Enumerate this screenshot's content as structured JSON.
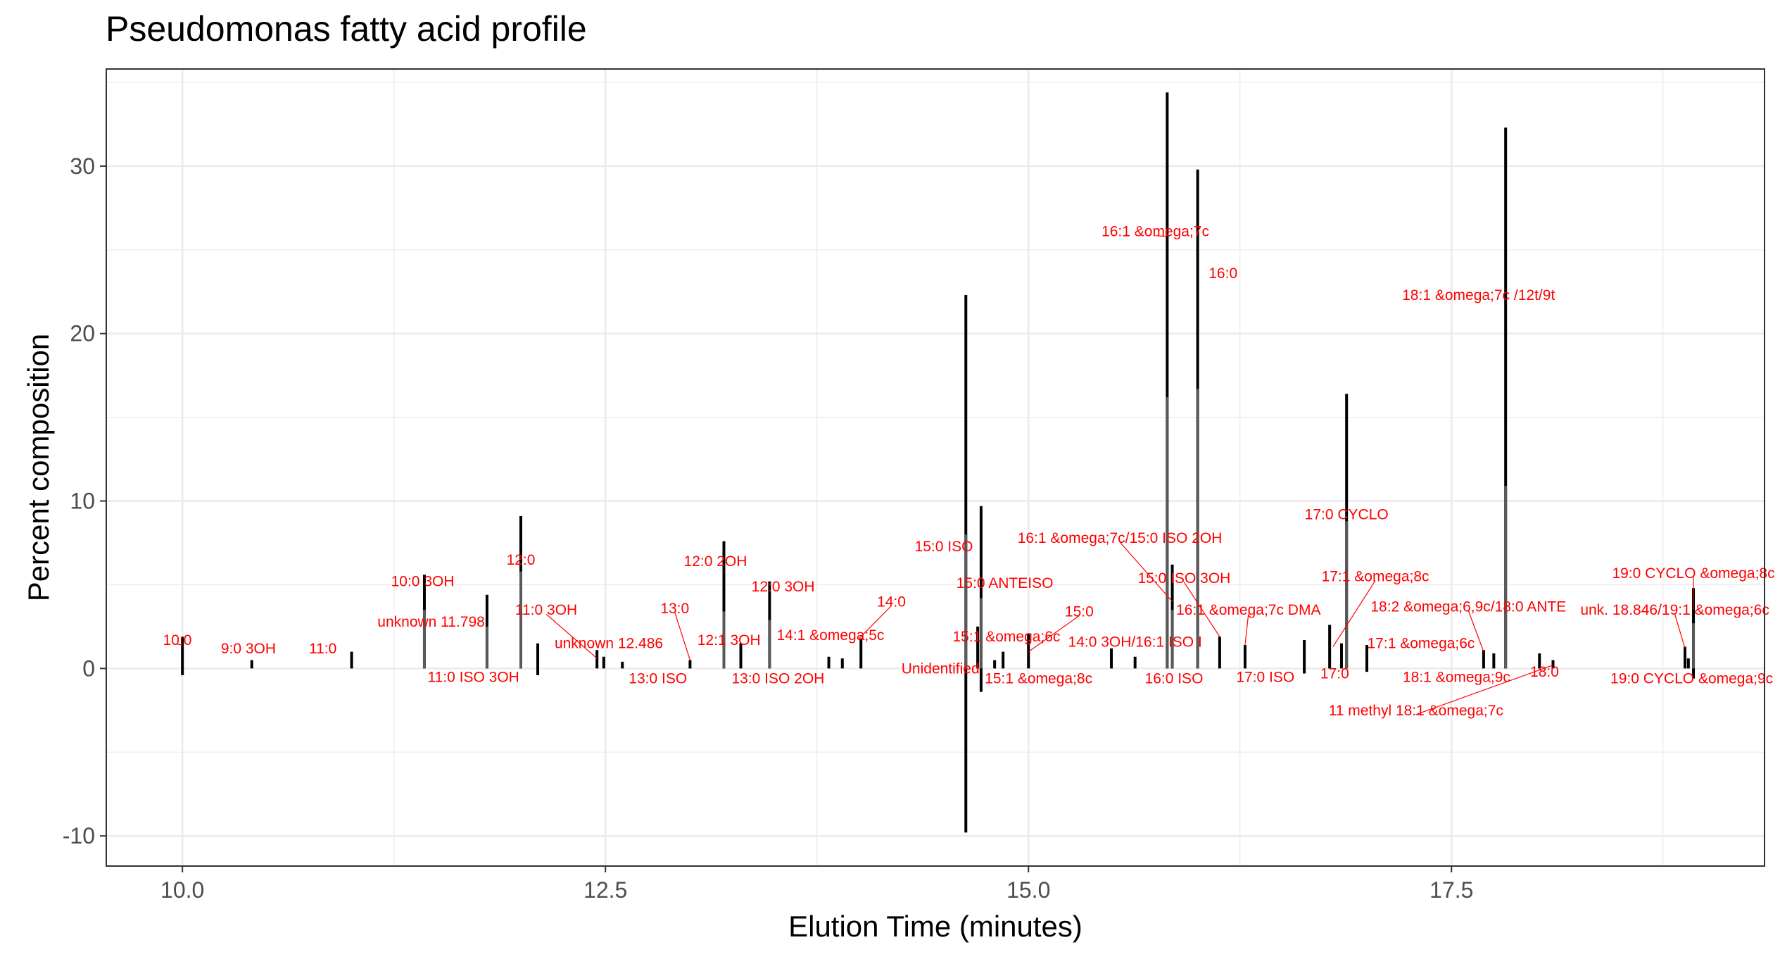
{
  "chart_data": {
    "type": "bar",
    "title": "Pseudomonas fatty acid profile",
    "xlabel": "Elution Time (minutes)",
    "ylabel": "Percent composition",
    "xlim": [
      9.55,
      19.35
    ],
    "ylim": [
      -11.8,
      35.8
    ],
    "x_ticks": [
      10.0,
      12.5,
      15.0,
      17.5
    ],
    "x_tick_labels": [
      "10.0",
      "12.5",
      "15.0",
      "17.5"
    ],
    "x_minor_ticks": [
      11.25,
      13.75,
      16.25,
      18.75
    ],
    "y_ticks": [
      -10,
      0,
      10,
      20,
      30
    ],
    "y_tick_labels": [
      "-10",
      "0",
      "10",
      "20",
      "30"
    ],
    "y_minor_ticks": [
      -5,
      5,
      15,
      25,
      35
    ],
    "grid": true,
    "colors": {
      "peak": "#000000",
      "peak_inner": "#595959",
      "label": "#ff0000",
      "grid": "#ebebeb",
      "border": "#333333"
    },
    "peaks": [
      {
        "x": 10.0,
        "y_max": 1.9,
        "y_min": -0.4,
        "inner_max": 0
      },
      {
        "x": 10.41,
        "y_max": 0.5,
        "y_min": 0,
        "inner_max": 0
      },
      {
        "x": 11.0,
        "y_max": 1.0,
        "y_min": 0,
        "inner_max": 0
      },
      {
        "x": 11.43,
        "y_max": 5.6,
        "y_min": 0,
        "inner_max": 3.5
      },
      {
        "x": 11.8,
        "y_max": 4.4,
        "y_min": 0,
        "inner_max": 2.5
      },
      {
        "x": 12.0,
        "y_max": 9.1,
        "y_min": 0,
        "inner_max": 5.8
      },
      {
        "x": 12.1,
        "y_max": 1.5,
        "y_min": -0.4,
        "inner_max": 0
      },
      {
        "x": 12.45,
        "y_max": 1.1,
        "y_min": 0,
        "inner_max": 0
      },
      {
        "x": 12.49,
        "y_max": 0.7,
        "y_min": 0,
        "inner_max": 0
      },
      {
        "x": 12.6,
        "y_max": 0.4,
        "y_min": 0,
        "inner_max": 0
      },
      {
        "x": 13.0,
        "y_max": 0.5,
        "y_min": 0,
        "inner_max": 0
      },
      {
        "x": 13.2,
        "y_max": 7.6,
        "y_min": 0,
        "inner_max": 3.4
      },
      {
        "x": 13.3,
        "y_max": 1.5,
        "y_min": 0,
        "inner_max": 0
      },
      {
        "x": 13.47,
        "y_max": 5.2,
        "y_min": 0,
        "inner_max": 2.9
      },
      {
        "x": 13.82,
        "y_max": 0.7,
        "y_min": 0,
        "inner_max": 0
      },
      {
        "x": 13.9,
        "y_max": 0.6,
        "y_min": 0,
        "inner_max": 0
      },
      {
        "x": 14.01,
        "y_max": 1.8,
        "y_min": 0,
        "inner_max": 0
      },
      {
        "x": 14.63,
        "y_max": 22.3,
        "y_min": -9.8,
        "inner_max": 8.0
      },
      {
        "x": 14.7,
        "y_max": 2.5,
        "y_min": 0,
        "inner_max": 0
      },
      {
        "x": 14.72,
        "y_max": 9.7,
        "y_min": -1.4,
        "inner_max": 4.2
      },
      {
        "x": 14.8,
        "y_max": 0.5,
        "y_min": 0,
        "inner_max": 0
      },
      {
        "x": 14.85,
        "y_max": 1.0,
        "y_min": 0,
        "inner_max": 0
      },
      {
        "x": 15.0,
        "y_max": 2.1,
        "y_min": 0,
        "inner_max": 0
      },
      {
        "x": 15.49,
        "y_max": 1.2,
        "y_min": 0,
        "inner_max": 0
      },
      {
        "x": 15.63,
        "y_max": 0.7,
        "y_min": 0,
        "inner_max": 0
      },
      {
        "x": 15.82,
        "y_max": 34.4,
        "y_min": 0,
        "inner_max": 16.2
      },
      {
        "x": 15.85,
        "y_max": 6.2,
        "y_min": 0,
        "inner_max": 3.5
      },
      {
        "x": 16.0,
        "y_max": 29.8,
        "y_min": 0,
        "inner_max": 16.7
      },
      {
        "x": 16.13,
        "y_max": 1.9,
        "y_min": 0,
        "inner_max": 0
      },
      {
        "x": 16.28,
        "y_max": 1.4,
        "y_min": 0,
        "inner_max": 0
      },
      {
        "x": 16.63,
        "y_max": 1.7,
        "y_min": -0.3,
        "inner_max": 0
      },
      {
        "x": 16.78,
        "y_max": 2.6,
        "y_min": 0,
        "inner_max": 0
      },
      {
        "x": 16.85,
        "y_max": 1.5,
        "y_min": 0,
        "inner_max": 0
      },
      {
        "x": 16.88,
        "y_max": 16.4,
        "y_min": 0,
        "inner_max": 8.8
      },
      {
        "x": 17.0,
        "y_max": 1.4,
        "y_min": -0.2,
        "inner_max": 0
      },
      {
        "x": 17.69,
        "y_max": 1.1,
        "y_min": 0,
        "inner_max": 0
      },
      {
        "x": 17.75,
        "y_max": 0.9,
        "y_min": 0,
        "inner_max": 0
      },
      {
        "x": 17.82,
        "y_max": 32.3,
        "y_min": 0,
        "inner_max": 10.9
      },
      {
        "x": 18.02,
        "y_max": 0.9,
        "y_min": 0,
        "inner_max": 0
      },
      {
        "x": 18.1,
        "y_max": 0.5,
        "y_min": 0,
        "inner_max": 0
      },
      {
        "x": 18.88,
        "y_max": 1.3,
        "y_min": 0,
        "inner_max": 0
      },
      {
        "x": 18.9,
        "y_max": 0.6,
        "y_min": 0,
        "inner_max": 0
      },
      {
        "x": 18.93,
        "y_max": 4.8,
        "y_min": -0.6,
        "inner_max": 2.7
      }
    ],
    "annotations": [
      {
        "text": "10:0",
        "x": 9.97,
        "y": 1.7,
        "lx": 10.0,
        "ly": 1.4,
        "anchor": "middle"
      },
      {
        "text": "9:0 3OH",
        "x": 10.39,
        "y": 1.2,
        "anchor": "middle"
      },
      {
        "text": "11:0",
        "x": 10.83,
        "y": 1.2,
        "anchor": "middle"
      },
      {
        "text": "10:0 3OH",
        "x": 11.42,
        "y": 5.2,
        "anchor": "middle"
      },
      {
        "text": "unknown 11.798",
        "x": 11.47,
        "y": 2.8,
        "anchor": "middle"
      },
      {
        "text": "12:0",
        "x": 12.0,
        "y": 6.5,
        "anchor": "middle"
      },
      {
        "text": "11:0 3OH",
        "x": 12.15,
        "y": 3.5,
        "lx": 12.45,
        "ly": 0.6,
        "anchor": "middle"
      },
      {
        "text": "unknown 12.486",
        "x": 12.52,
        "y": 1.5,
        "anchor": "middle"
      },
      {
        "text": "11:0 ISO 3OH",
        "x": 11.72,
        "y": -0.5,
        "anchor": "middle"
      },
      {
        "text": "13:0",
        "x": 12.91,
        "y": 3.6,
        "lx": 13.0,
        "ly": 0.5,
        "anchor": "middle"
      },
      {
        "text": "13:0 ISO",
        "x": 12.81,
        "y": -0.6,
        "anchor": "middle"
      },
      {
        "text": "12:0 2OH",
        "x": 13.15,
        "y": 6.4,
        "anchor": "middle"
      },
      {
        "text": "12:1 3OH",
        "x": 13.23,
        "y": 1.7,
        "anchor": "middle"
      },
      {
        "text": "12:0 3OH",
        "x": 13.55,
        "y": 4.9,
        "anchor": "middle"
      },
      {
        "text": "13:0 ISO 2OH",
        "x": 13.52,
        "y": -0.6,
        "anchor": "middle"
      },
      {
        "text": "14:1 &omega;5c",
        "x": 13.83,
        "y": 2.0,
        "anchor": "middle"
      },
      {
        "text": "14:0",
        "x": 14.19,
        "y": 4.0,
        "lx": 14.0,
        "ly": 1.8,
        "anchor": "middle"
      },
      {
        "text": "Unidentified",
        "x": 14.48,
        "y": 0.0,
        "anchor": "middle"
      },
      {
        "text": "15:0 ISO",
        "x": 14.5,
        "y": 7.3,
        "anchor": "middle"
      },
      {
        "text": "15:0 ANTEISO",
        "x": 14.86,
        "y": 5.1,
        "anchor": "middle"
      },
      {
        "text": "15:1 &omega;6c",
        "x": 14.87,
        "y": 1.9,
        "anchor": "middle"
      },
      {
        "text": "15:1 &omega;8c",
        "x": 15.06,
        "y": -0.6,
        "anchor": "middle"
      },
      {
        "text": "15:0",
        "x": 15.3,
        "y": 3.4,
        "lx": 15.0,
        "ly": 1.0,
        "anchor": "middle"
      },
      {
        "text": "16:1 &omega;7c/15:0 ISO 2OH",
        "x": 15.54,
        "y": 7.8,
        "lx": 15.85,
        "ly": 4.0,
        "anchor": "middle"
      },
      {
        "text": "14:0 3OH/16:1 ISO I",
        "x": 15.63,
        "y": 1.6,
        "anchor": "middle"
      },
      {
        "text": "16:0 ISO",
        "x": 15.86,
        "y": -0.6,
        "anchor": "middle"
      },
      {
        "text": "15:0 ISO 3OH",
        "x": 15.92,
        "y": 5.4,
        "lx": 16.13,
        "ly": 1.9,
        "anchor": "middle"
      },
      {
        "text": "16:1 &omega;7c",
        "x": 15.75,
        "y": 26.1,
        "lx": 15.82,
        "ly": 25.8,
        "anchor": "middle"
      },
      {
        "text": "16:0",
        "x": 16.15,
        "y": 23.6,
        "anchor": "middle"
      },
      {
        "text": "16:1 &omega;7c DMA",
        "x": 16.3,
        "y": 3.5,
        "lx": 16.28,
        "ly": 1.4,
        "anchor": "middle"
      },
      {
        "text": "17:0 ISO",
        "x": 16.4,
        "y": -0.5,
        "anchor": "middle"
      },
      {
        "text": "17:0",
        "x": 16.81,
        "y": -0.3,
        "anchor": "middle"
      },
      {
        "text": "17:0 CYCLO",
        "x": 16.88,
        "y": 9.2,
        "anchor": "middle"
      },
      {
        "text": "17:1 &omega;8c",
        "x": 17.05,
        "y": 5.5,
        "lx": 16.8,
        "ly": 1.3,
        "anchor": "middle"
      },
      {
        "text": "17:1 &omega;6c",
        "x": 17.32,
        "y": 1.5,
        "anchor": "middle"
      },
      {
        "text": "18:2 &omega;6,9c/18:0 ANTE",
        "x": 17.6,
        "y": 3.7,
        "lx": 17.69,
        "ly": 1.0,
        "anchor": "middle"
      },
      {
        "text": "18:1 &omega;9c",
        "x": 17.53,
        "y": -0.5,
        "anchor": "middle"
      },
      {
        "text": "18:1 &omega;7c /12t/9t",
        "x": 17.66,
        "y": 22.3,
        "anchor": "middle"
      },
      {
        "text": "18:0",
        "x": 18.05,
        "y": -0.2,
        "anchor": "middle"
      },
      {
        "text": "11 methyl 18:1 &omega;7c",
        "x": 17.29,
        "y": -2.5,
        "lx": 18.1,
        "ly": 0.2,
        "anchor": "middle"
      },
      {
        "text": "19:0 CYCLO &omega;8c",
        "x": 18.93,
        "y": 5.7,
        "lx": 18.93,
        "ly": 3.5,
        "anchor": "middle"
      },
      {
        "text": "unk. 18.846/19:1 &omega;6c",
        "x": 18.82,
        "y": 3.5,
        "lx": 18.88,
        "ly": 1.2,
        "anchor": "middle"
      },
      {
        "text": "19:0 CYCLO &omega;9c",
        "x": 18.92,
        "y": -0.6,
        "anchor": "middle"
      }
    ]
  }
}
